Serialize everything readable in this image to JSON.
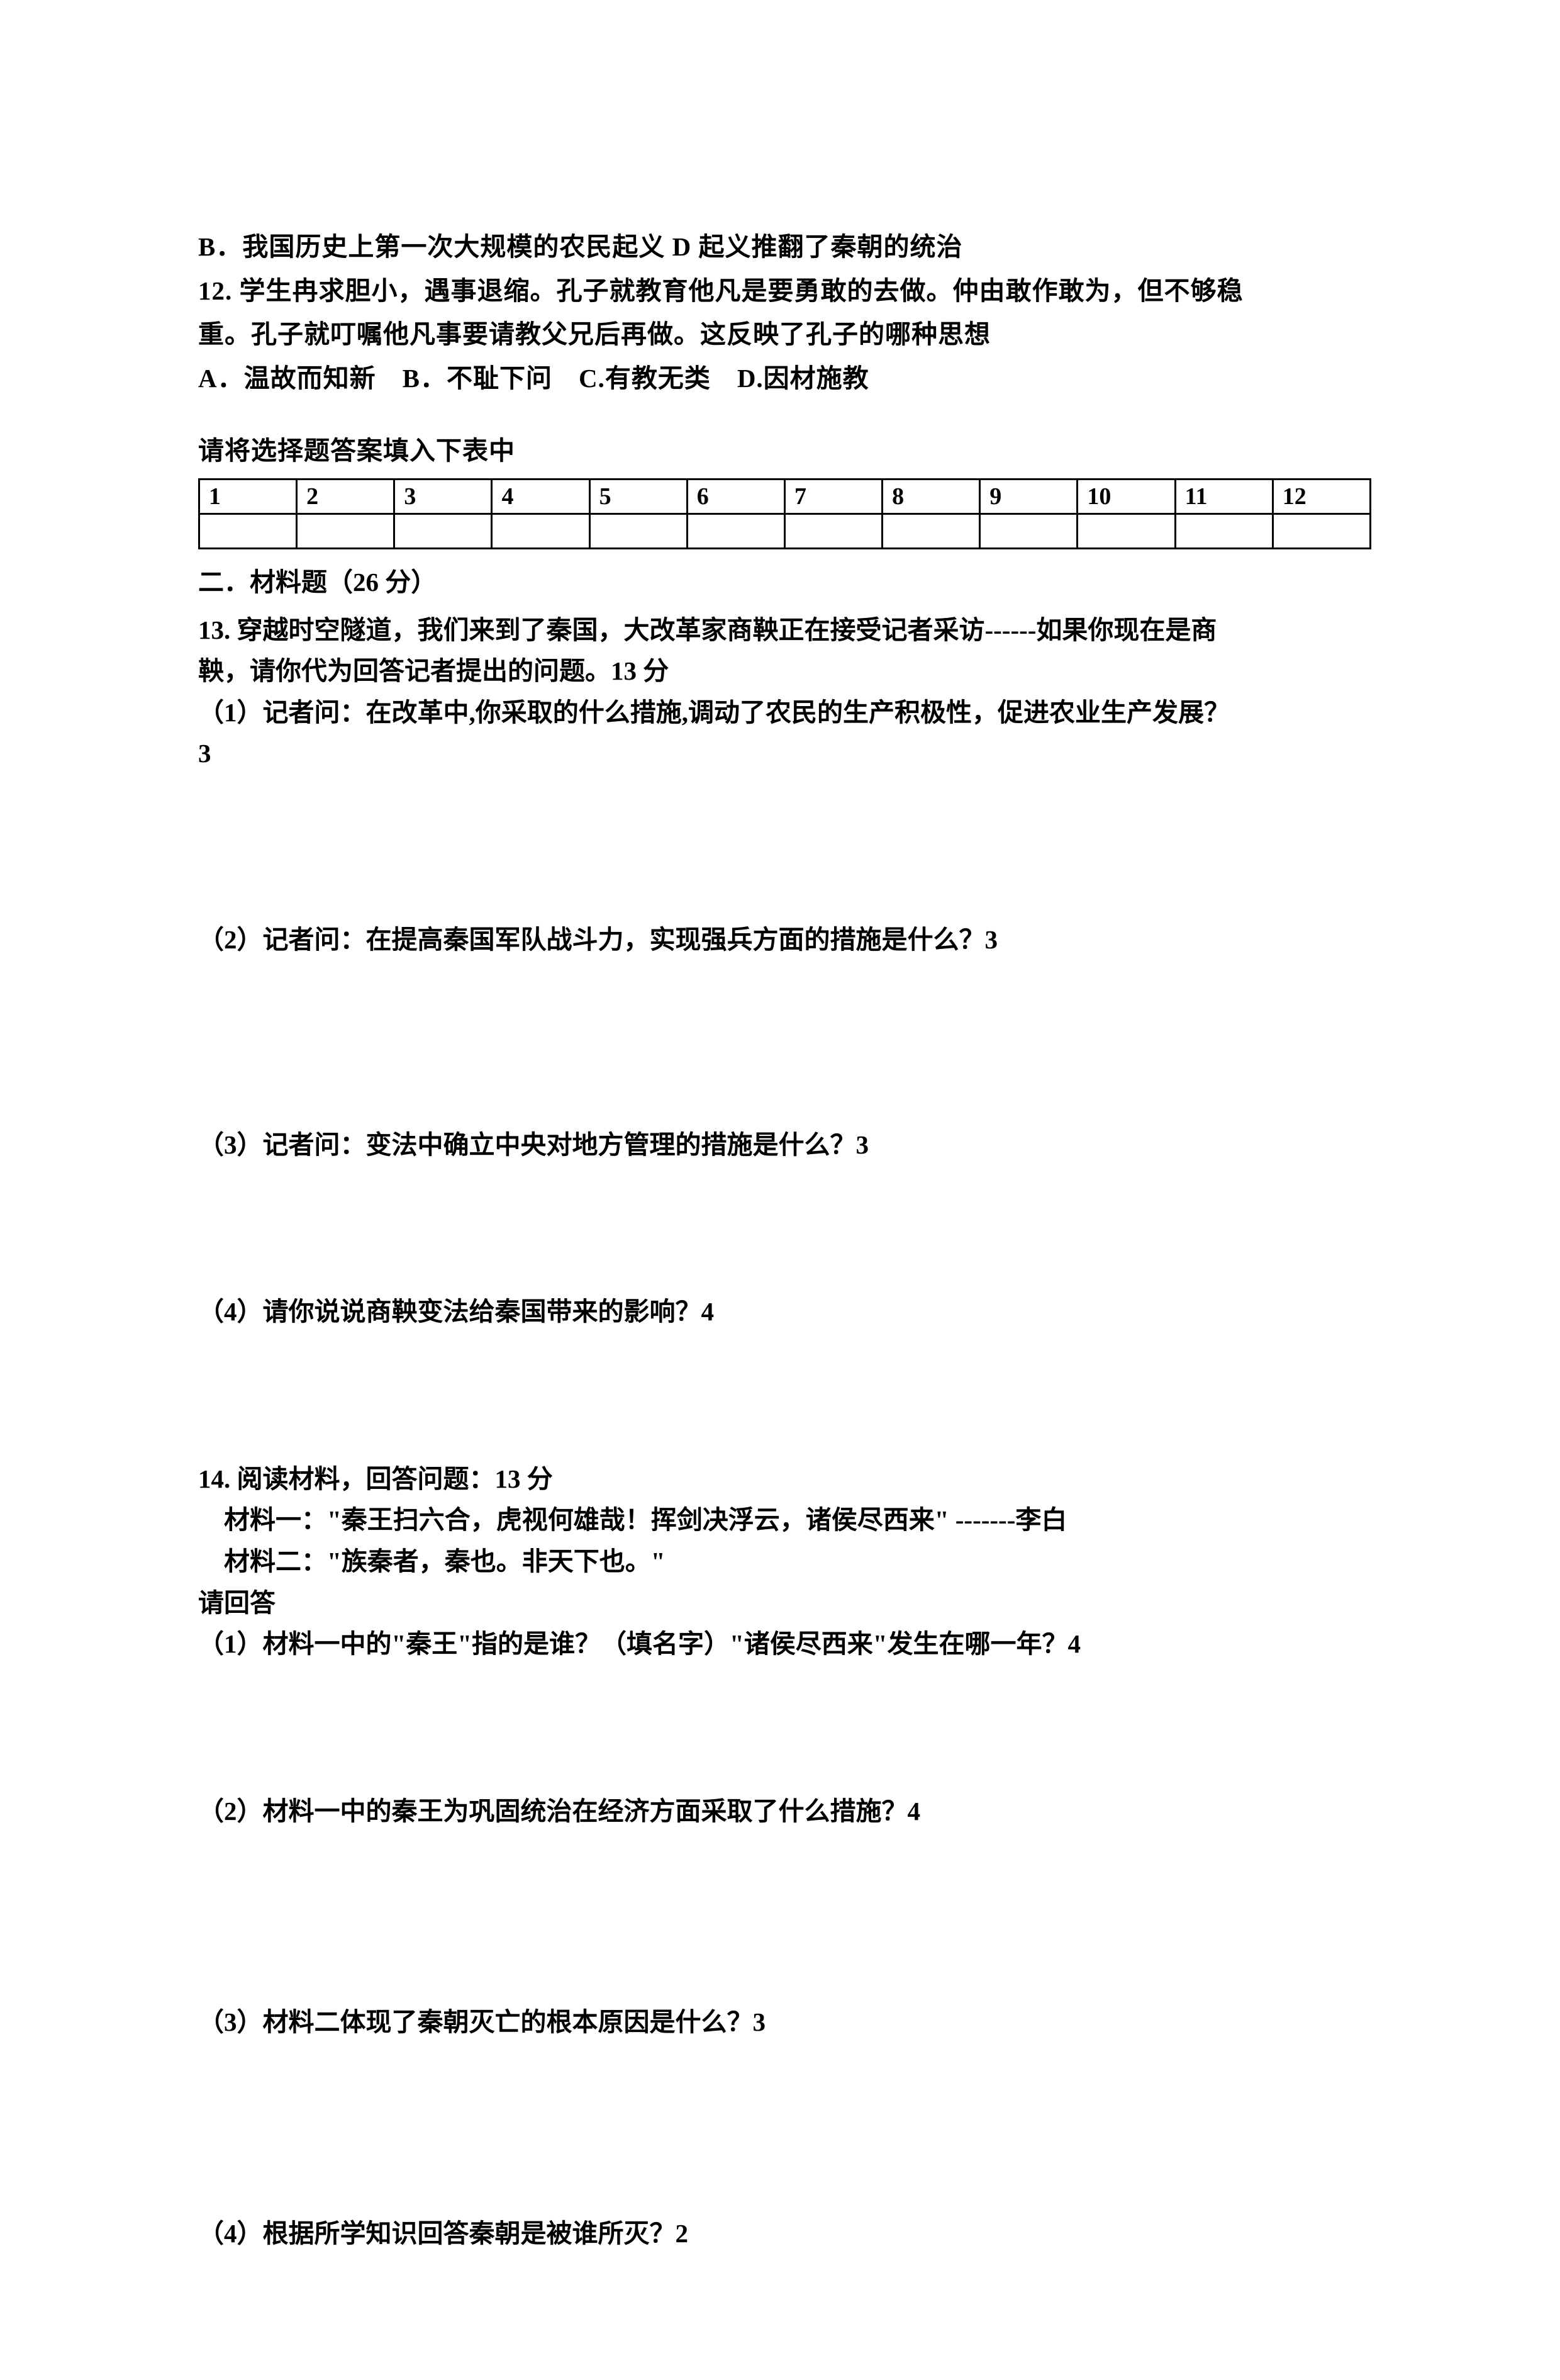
{
  "lines": {
    "line_b": "B．我国历史上第一次大规模的农民起义 D 起义推翻了秦朝的统治",
    "line_12a": "12. 学生冉求胆小，遇事退缩。孔子就教育他凡是要勇敢的去做。仲由敢作敢为，但不够稳",
    "line_12b": "重。孔子就叮嘱他凡事要请教父兄后再做。这反映了孔子的哪种思想",
    "line_12c": "A．温故而知新　B．不耻下问　C.有教无类　D.因材施教",
    "table_title": "请将选择题答案填入下表中"
  },
  "table_headers": [
    "1",
    "2",
    "3",
    "4",
    "5",
    "6",
    "7",
    "8",
    "9",
    "10",
    "11",
    "12"
  ],
  "section2": {
    "title": "二．材料题（26 分）",
    "q13a": "13. 穿越时空隧道，我们来到了秦国，大改革家商鞅正在接受记者采访------如果你现在是商",
    "q13b": "鞅，请你代为回答记者提出的问题。13 分",
    "q13_1": "（1）记者问：在改革中,你采取的什么措施,调动了农民的生产积极性，促进农业生产发展？",
    "q13_1_pts": "3",
    "q13_2": "（2）记者问：在提高秦国军队战斗力，实现强兵方面的措施是什么？3",
    "q13_3": "（3）记者问：变法中确立中央对地方管理的措施是什么？3",
    "q13_4": "（4）请你说说商鞅变法给秦国带来的影响？4",
    "q14a": "14. 阅读材料，回答问题：13 分",
    "q14b": "　材料一：\"秦王扫六合，虎视何雄哉！挥剑决浮云，诸侯尽西来\" -------李白",
    "q14c": "　材料二：\"族秦者，秦也。非天下也。\"",
    "q14d": "请回答",
    "q14_1": "（1）材料一中的\"秦王\"指的是谁？（填名字）\"诸侯尽西来\"发生在哪一年？4",
    "q14_2": "（2）材料一中的秦王为巩固统治在经济方面采取了什么措施？4",
    "q14_3": "（3）材料二体现了秦朝灭亡的根本原因是什么？3",
    "q14_4": "（4）根据所学知识回答秦朝是被谁所灭？2"
  }
}
